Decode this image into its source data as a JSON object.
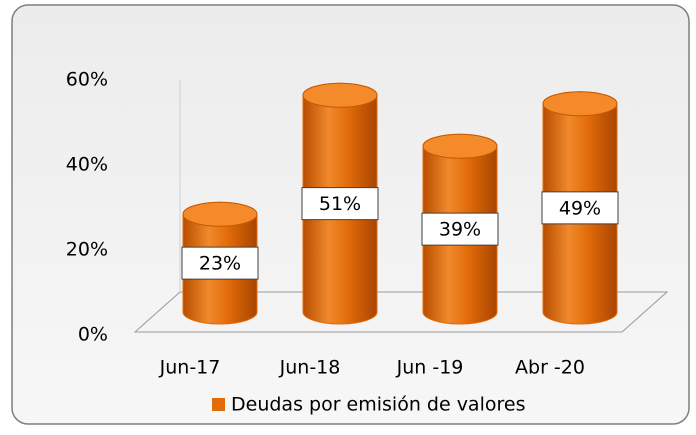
{
  "chart_data": {
    "type": "bar",
    "categories": [
      "Jun-17",
      "Jun-18",
      "Jun -19",
      "Abr -20"
    ],
    "series": [
      {
        "name": "Deudas por emisión de valores",
        "color": "#e36c0a",
        "values": [
          23,
          51,
          39,
          49
        ],
        "value_labels": [
          "23%",
          "51%",
          "39%",
          "49%"
        ]
      }
    ],
    "ylim": [
      0,
      60
    ],
    "yticks": [
      {
        "value": 0,
        "label": "0%"
      },
      {
        "value": 20,
        "label": "20%"
      },
      {
        "value": 40,
        "label": "40%"
      },
      {
        "value": 60,
        "label": "60%"
      }
    ],
    "grid": false,
    "legend": "bottom"
  }
}
